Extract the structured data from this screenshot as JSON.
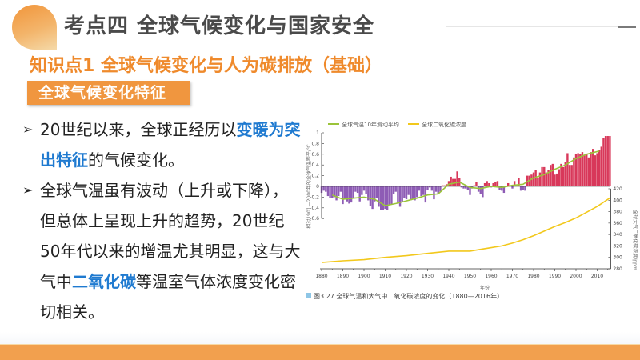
{
  "header": {
    "title": "考点四  全球气候变化与国家安全",
    "subtitle": "知识点1  全球气候变化与人为碳排放（基础）",
    "tag": "全球气候变化特征"
  },
  "bullets": [
    {
      "arrow": "➢",
      "parts": [
        {
          "text": "20世纪以来，全球正经历以",
          "hl": false
        },
        {
          "text": "变暖为突出特征",
          "hl": true
        },
        {
          "text": "的气候变化。",
          "hl": false
        }
      ]
    },
    {
      "arrow": "➢",
      "parts": [
        {
          "text": "全球气温虽有波动（上升或下降），但总体上呈现上升的趋势，20世纪50年代以来的增温尤其明显，这与大气中",
          "hl": false
        },
        {
          "text": "二氧化碳",
          "hl": true
        },
        {
          "text": "等温室气体浓度变化密切相关。",
          "hl": false
        }
      ]
    }
  ],
  "colors": {
    "accent": "#ef8a2c",
    "tag_bg": "#f0963f",
    "highlight": "#1f7ad0",
    "bar_positive": "#d8385a",
    "bar_negative": "#8e5cb5",
    "moving_avg": "#9bc43a",
    "co2_line": "#f2c81c",
    "footer": "#f2a04e"
  },
  "chart_data": {
    "type": "bar+line",
    "title": "图3.27  全球气温和大气中二氧化碳浓度的变化（1880—2016年）",
    "legend": [
      "全球气温10年滑动平均",
      "全球二氧化碳浓度"
    ],
    "legend_position": "top",
    "xlabel": "年份",
    "ylabel_left": "相对1901—2000年的全球气温距平/℃",
    "ylabel_right": "全球大气二氧化碳浓度/ppm",
    "x_ticks": [
      1880,
      1890,
      1900,
      1910,
      1920,
      1930,
      1940,
      1950,
      1960,
      1970,
      1980,
      1990,
      2000,
      2010
    ],
    "y_left_ticks": [
      -0.6,
      -0.4,
      -0.2,
      0,
      0.2,
      0.4,
      0.6,
      0.8,
      1
    ],
    "y_left_range": [
      -0.6,
      1.0
    ],
    "y_right_ticks": [
      280,
      300,
      320,
      340,
      360,
      380,
      400,
      420
    ],
    "y_right_range": [
      280,
      420
    ],
    "grid": false,
    "series": [
      {
        "name": "年均气温距平(℃)",
        "kind": "bar",
        "x_start": 1880,
        "values": [
          -0.12,
          -0.08,
          -0.1,
          -0.18,
          -0.22,
          -0.22,
          -0.2,
          -0.26,
          -0.18,
          -0.1,
          -0.33,
          -0.24,
          -0.28,
          -0.32,
          -0.3,
          -0.22,
          -0.1,
          -0.12,
          -0.28,
          -0.16,
          -0.08,
          -0.14,
          -0.26,
          -0.36,
          -0.42,
          -0.28,
          -0.22,
          -0.38,
          -0.44,
          -0.44,
          -0.42,
          -0.44,
          -0.34,
          -0.34,
          -0.14,
          -0.1,
          -0.32,
          -0.38,
          -0.28,
          -0.22,
          -0.24,
          -0.16,
          -0.26,
          -0.24,
          -0.26,
          -0.2,
          -0.08,
          -0.18,
          -0.16,
          -0.3,
          -0.06,
          -0.02,
          -0.08,
          -0.24,
          -0.1,
          -0.14,
          -0.1,
          0.02,
          0.02,
          0.04,
          0.1,
          0.18,
          0.14,
          0.14,
          0.28,
          0.16,
          -0.02,
          -0.04,
          -0.04,
          -0.06,
          -0.16,
          -0.04,
          0.02,
          0.08,
          -0.1,
          -0.14,
          -0.2,
          0.06,
          0.1,
          0.06,
          -0.02,
          0.06,
          0.08,
          0.1,
          -0.06,
          -0.08,
          -0.12,
          0.0,
          0.06,
          0.02,
          -0.04,
          0.1,
          0.02,
          0.16,
          -0.08,
          -0.06,
          -0.08,
          0.2,
          0.2,
          0.22,
          0.26,
          0.3,
          0.16,
          0.26,
          0.36,
          0.36,
          0.26,
          0.3,
          0.4,
          0.42,
          0.22,
          0.24,
          0.32,
          0.42,
          0.36,
          0.46,
          0.62,
          0.4,
          0.4,
          0.54,
          0.6,
          0.62,
          0.6,
          0.64,
          0.58,
          0.6,
          0.54,
          0.64,
          0.7,
          0.58,
          0.62,
          0.68,
          0.74,
          0.9,
          0.94,
          0.94,
          0.94
        ]
      },
      {
        "name": "全球气温10年滑动平均",
        "kind": "line",
        "points": [
          [
            1885,
            -0.16
          ],
          [
            1890,
            -0.24
          ],
          [
            1895,
            -0.22
          ],
          [
            1900,
            -0.2
          ],
          [
            1905,
            -0.24
          ],
          [
            1910,
            -0.36
          ],
          [
            1915,
            -0.32
          ],
          [
            1920,
            -0.27
          ],
          [
            1925,
            -0.22
          ],
          [
            1930,
            -0.16
          ],
          [
            1935,
            -0.14
          ],
          [
            1940,
            0.04
          ],
          [
            1945,
            0.08
          ],
          [
            1950,
            -0.02
          ],
          [
            1955,
            -0.04
          ],
          [
            1960,
            0.0
          ],
          [
            1965,
            -0.02
          ],
          [
            1970,
            0.02
          ],
          [
            1975,
            0.04
          ],
          [
            1980,
            0.16
          ],
          [
            1985,
            0.22
          ],
          [
            1990,
            0.32
          ],
          [
            1995,
            0.4
          ],
          [
            2000,
            0.52
          ],
          [
            2005,
            0.6
          ],
          [
            2011,
            0.66
          ]
        ]
      },
      {
        "name": "全球二氧化碳浓度(ppm)",
        "kind": "line",
        "points": [
          [
            1880,
            291
          ],
          [
            1890,
            294
          ],
          [
            1900,
            296
          ],
          [
            1910,
            300
          ],
          [
            1920,
            303
          ],
          [
            1930,
            307
          ],
          [
            1940,
            311
          ],
          [
            1950,
            311
          ],
          [
            1955,
            314
          ],
          [
            1960,
            317
          ],
          [
            1965,
            320
          ],
          [
            1970,
            325
          ],
          [
            1975,
            331
          ],
          [
            1980,
            338
          ],
          [
            1985,
            346
          ],
          [
            1990,
            354
          ],
          [
            1995,
            361
          ],
          [
            2000,
            369
          ],
          [
            2005,
            379
          ],
          [
            2010,
            389
          ],
          [
            2016,
            404
          ]
        ]
      }
    ]
  }
}
